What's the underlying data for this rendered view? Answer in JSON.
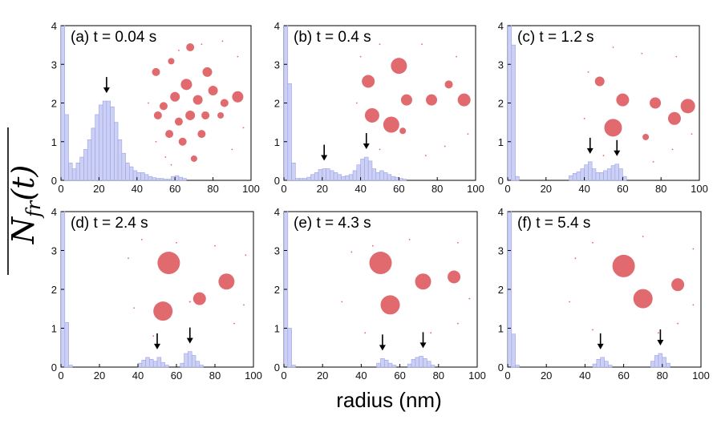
{
  "figure": {
    "xlabel": "radius (nm)",
    "ylabel_main": "N",
    "ylabel_sub": "fr",
    "ylabel_tail": "(t)"
  },
  "colors": {
    "bar": "#ccd0f5",
    "bar_edge": "#9aa2e6",
    "cluster": "#e06a6e",
    "axis": "#000000"
  },
  "chart_data": [
    {
      "type": "bar",
      "panel": "(a)",
      "title": "(a)  t = 0.04 s",
      "xlim": [
        0,
        100
      ],
      "ylim": [
        0,
        4
      ],
      "xticks": [
        "0",
        "20",
        "40",
        "60",
        "80",
        "100"
      ],
      "yticks": [
        "0",
        "1",
        "2",
        "3",
        "4"
      ],
      "bin_width": 2,
      "bin_centers": [
        1,
        3,
        5,
        7,
        9,
        11,
        13,
        15,
        17,
        19,
        21,
        23,
        25,
        27,
        29,
        31,
        33,
        35,
        37,
        39,
        41,
        43,
        45,
        47,
        49,
        51,
        53,
        55,
        57,
        59,
        61,
        63,
        65
      ],
      "values": [
        4.0,
        1.7,
        0.45,
        0.3,
        0.45,
        0.6,
        0.8,
        1.05,
        1.35,
        1.7,
        1.95,
        2.05,
        2.05,
        1.9,
        1.5,
        1.05,
        0.7,
        0.45,
        0.35,
        0.25,
        0.2,
        0.2,
        0.15,
        0.1,
        0.07,
        0.05,
        0.05,
        0.03,
        0.03,
        0.1,
        0.12,
        0.08,
        0.05
      ],
      "arrows_at_radius": [
        24
      ]
    },
    {
      "type": "bar",
      "panel": "(b)",
      "title": "(b)  t = 0.4 s",
      "xlim": [
        0,
        100
      ],
      "ylim": [
        0,
        4
      ],
      "xticks": [
        "0",
        "20",
        "40",
        "60",
        "80",
        "100"
      ],
      "yticks": [
        "0",
        "1",
        "2",
        "3",
        "4"
      ],
      "bin_width": 2,
      "bin_centers": [
        1,
        3,
        5,
        7,
        9,
        11,
        13,
        15,
        17,
        19,
        21,
        23,
        25,
        27,
        29,
        31,
        33,
        35,
        37,
        39,
        41,
        43,
        45,
        47,
        49,
        51,
        53,
        55,
        57,
        59,
        61,
        63
      ],
      "values": [
        4.0,
        2.5,
        0.45,
        0.05,
        0.05,
        0.05,
        0.08,
        0.15,
        0.2,
        0.28,
        0.3,
        0.3,
        0.25,
        0.2,
        0.15,
        0.1,
        0.12,
        0.15,
        0.25,
        0.4,
        0.55,
        0.6,
        0.5,
        0.3,
        0.2,
        0.25,
        0.2,
        0.15,
        0.1,
        0.08,
        0.05,
        0.03
      ],
      "arrows_at_radius": [
        21,
        43
      ]
    },
    {
      "type": "bar",
      "panel": "(c)",
      "title": "(c)  t = 1.2 s",
      "xlim": [
        0,
        100
      ],
      "ylim": [
        0,
        4
      ],
      "xticks": [
        "0",
        "20",
        "40",
        "60",
        "80",
        "100"
      ],
      "yticks": [
        "0",
        "1",
        "2",
        "3",
        "4"
      ],
      "bin_width": 2,
      "bin_centers": [
        1,
        3,
        5,
        33,
        35,
        37,
        39,
        41,
        43,
        45,
        47,
        49,
        51,
        53,
        55,
        57,
        59,
        61
      ],
      "values": [
        4.0,
        3.5,
        0.1,
        0.12,
        0.18,
        0.22,
        0.3,
        0.4,
        0.48,
        0.3,
        0.2,
        0.2,
        0.25,
        0.3,
        0.38,
        0.42,
        0.3,
        0.1
      ],
      "arrows_at_radius": [
        43,
        57
      ]
    },
    {
      "type": "bar",
      "panel": "(d)",
      "title": "(d)  t = 2.4 s",
      "xlim": [
        0,
        100
      ],
      "ylim": [
        0,
        4
      ],
      "xticks": [
        "0",
        "20",
        "40",
        "60",
        "80",
        "100"
      ],
      "yticks": [
        "0",
        "1",
        "2",
        "3",
        "4"
      ],
      "bin_width": 2,
      "bin_centers": [
        1,
        3,
        5,
        41,
        43,
        45,
        47,
        49,
        51,
        53,
        55,
        63,
        65,
        67,
        69,
        71,
        73
      ],
      "values": [
        4.0,
        1.15,
        0.05,
        0.1,
        0.18,
        0.25,
        0.2,
        0.15,
        0.25,
        0.12,
        0.05,
        0.1,
        0.35,
        0.4,
        0.3,
        0.15,
        0.05
      ],
      "arrows_at_radius": [
        50,
        67
      ]
    },
    {
      "type": "bar",
      "panel": "(e)",
      "title": "(e)  t = 4.3 s",
      "xlim": [
        0,
        100
      ],
      "ylim": [
        0,
        4
      ],
      "xticks": [
        "0",
        "20",
        "40",
        "60",
        "80",
        "100"
      ],
      "yticks": [
        "0",
        "1",
        "2",
        "3",
        "4"
      ],
      "bin_width": 2,
      "bin_centers": [
        1,
        3,
        5,
        49,
        51,
        53,
        55,
        57,
        65,
        67,
        69,
        71,
        73,
        75,
        77
      ],
      "values": [
        4.0,
        1.0,
        0.05,
        0.1,
        0.22,
        0.18,
        0.1,
        0.05,
        0.08,
        0.2,
        0.25,
        0.28,
        0.22,
        0.15,
        0.05
      ],
      "arrows_at_radius": [
        51,
        72
      ]
    },
    {
      "type": "bar",
      "panel": "(f)",
      "title": "(f)  t = 5.4 s",
      "xlim": [
        0,
        100
      ],
      "ylim": [
        0,
        4
      ],
      "xticks": [
        "0",
        "20",
        "40",
        "60",
        "80",
        "100"
      ],
      "yticks": [
        "0",
        "1",
        "2",
        "3",
        "4"
      ],
      "bin_width": 2,
      "bin_centers": [
        1,
        3,
        5,
        45,
        47,
        49,
        51,
        53,
        75,
        77,
        79,
        81,
        83
      ],
      "values": [
        4.0,
        0.85,
        0.05,
        0.08,
        0.2,
        0.25,
        0.15,
        0.05,
        0.15,
        0.3,
        0.35,
        0.25,
        0.1
      ],
      "arrows_at_radius": [
        48,
        79
      ]
    }
  ]
}
